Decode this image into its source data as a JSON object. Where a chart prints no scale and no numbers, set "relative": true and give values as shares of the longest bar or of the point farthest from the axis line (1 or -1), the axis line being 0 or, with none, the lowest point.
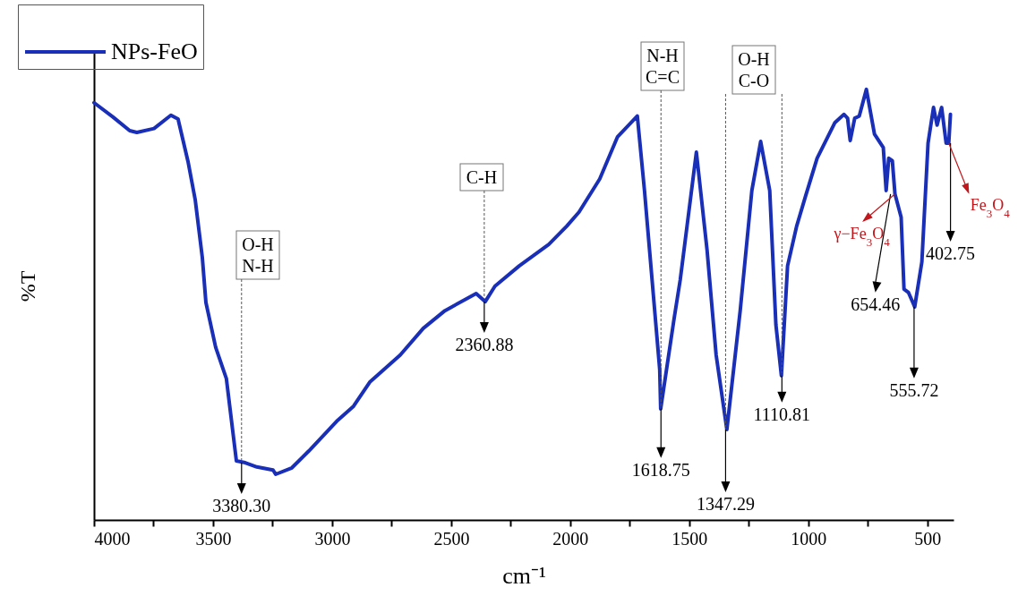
{
  "chart_data": {
    "type": "line",
    "relative": true,
    "xlabel": "cm⁻¹",
    "ylabel": "%T",
    "legend": "top left",
    "xlim": [
      4000,
      390
    ],
    "xticks": [
      4000,
      {
        "value": 3750,
        "label": null
      },
      3500,
      {
        "value": 3250,
        "label": null
      },
      3000,
      {
        "value": 2750,
        "label": null
      },
      2500,
      {
        "value": 2250,
        "label": null
      },
      2000,
      {
        "value": 1750,
        "label": null
      },
      1500,
      {
        "value": 1250,
        "label": null
      },
      1000,
      {
        "value": 750,
        "label": null
      },
      500
    ],
    "x": [
      4000,
      3921,
      3850,
      3820,
      3748,
      3677,
      3647,
      3605,
      3575,
      3545,
      3530,
      3489,
      3444,
      3402,
      3365,
      3316,
      3248,
      3237,
      3169,
      3098,
      2981,
      2910,
      2842,
      2714,
      2617,
      2526,
      2395,
      2357,
      2316,
      2214,
      2090,
      2015,
      1963,
      1876,
      1801,
      1718,
      1688,
      1624,
      1620,
      1564,
      1538,
      1470,
      1425,
      1387,
      1342,
      1286,
      1237,
      1200,
      1162,
      1136,
      1113,
      1087,
      1049,
      1012,
      963,
      888,
      850,
      835,
      824,
      805,
      786,
      756,
      722,
      685,
      673,
      662,
      647,
      636,
      610,
      598,
      579,
      553,
      523,
      497,
      474,
      459,
      440,
      421,
      410,
      403
    ],
    "series": [
      {
        "name": "NPs-FeO",
        "color": "#1a2fb8",
        "values": [
          0.969,
          0.936,
          0.904,
          0.9,
          0.909,
          0.94,
          0.931,
          0.832,
          0.744,
          0.609,
          0.505,
          0.401,
          0.328,
          0.137,
          0.133,
          0.123,
          0.116,
          0.106,
          0.121,
          0.16,
          0.229,
          0.264,
          0.32,
          0.383,
          0.445,
          0.486,
          0.526,
          0.507,
          0.543,
          0.59,
          0.64,
          0.682,
          0.715,
          0.792,
          0.89,
          0.938,
          0.765,
          0.349,
          0.258,
          0.466,
          0.557,
          0.854,
          0.626,
          0.383,
          0.21,
          0.486,
          0.765,
          0.879,
          0.765,
          0.453,
          0.335,
          0.59,
          0.682,
          0.751,
          0.84,
          0.923,
          0.942,
          0.933,
          0.881,
          0.933,
          0.938,
          1.0,
          0.896,
          0.865,
          0.765,
          0.84,
          0.834,
          0.757,
          0.703,
          0.536,
          0.528,
          0.495,
          0.599,
          0.875,
          0.958,
          0.917,
          0.958,
          0.875,
          0.875,
          0.942
        ]
      }
    ],
    "annotations": [
      "O-H\nN-H",
      "C-H",
      "N-H\nC=C",
      "O-H\nC-O",
      {
        "text": "3380.30",
        "x": 3380.3,
        "y": 0.133
      },
      {
        "text": "2360.88",
        "x": 2360.88,
        "y": 0.507
      },
      {
        "text": "1618.75",
        "x": 1618.75,
        "y": 0.258
      },
      {
        "text": "1347.29",
        "x": 1347.29,
        "y": 0.21
      },
      {
        "text": "1110.81",
        "x": 1110.81,
        "y": 0.335
      },
      {
        "text": "654.46",
        "x": 654.46,
        "y": 0.757
      },
      {
        "text": "555.72",
        "x": 555.72,
        "y": 0.495
      },
      {
        "text": "402.75",
        "x": 402.75,
        "y": 0.875
      },
      {
        "text": "γ−Fe$_{3}$O$_{4}$",
        "x": 636,
        "y": 0.757
      },
      {
        "text": "Fe$_{3}$O$_{4}$",
        "x": 410,
        "y": 0.875
      }
    ]
  }
}
